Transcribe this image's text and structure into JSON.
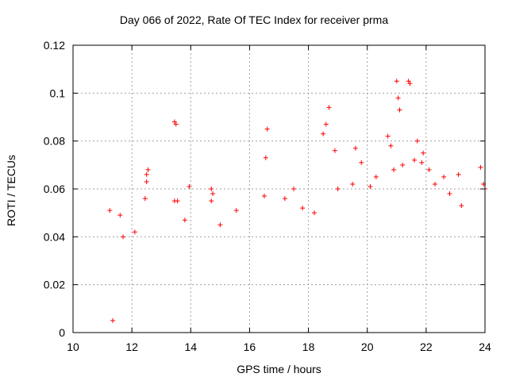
{
  "chart_data": {
    "type": "scatter",
    "title": "Day 066 of 2022, Rate Of TEC Index for receiver prma",
    "xlabel": "GPS time / hours",
    "ylabel": "ROTI / TECUs",
    "xlim": [
      10,
      24
    ],
    "ylim": [
      0,
      0.12
    ],
    "x_ticks": [
      10,
      12,
      14,
      16,
      18,
      20,
      22,
      24
    ],
    "x_tick_labels": [
      "10",
      "12",
      "14",
      "16",
      "18",
      "20",
      "22",
      "24"
    ],
    "y_ticks": [
      0,
      0.02,
      0.04,
      0.06,
      0.08,
      0.1,
      0.12
    ],
    "y_tick_labels": [
      "0",
      "0.02",
      "0.04",
      "0.06",
      "0.08",
      "0.1",
      "0.12"
    ],
    "grid": true,
    "legend": "none",
    "marker": "plus",
    "color": "#ff0000",
    "series": [
      {
        "points": [
          [
            11.25,
            0.051
          ],
          [
            11.35,
            0.005
          ],
          [
            11.6,
            0.049
          ],
          [
            12.5,
            0.066
          ],
          [
            12.55,
            0.068
          ],
          [
            12.45,
            0.056
          ],
          [
            12.5,
            0.063
          ],
          [
            13.45,
            0.088
          ],
          [
            13.5,
            0.087
          ],
          [
            13.45,
            0.055
          ],
          [
            13.55,
            0.055
          ],
          [
            13.95,
            0.061
          ],
          [
            14.7,
            0.06
          ],
          [
            14.75,
            0.058
          ],
          [
            14.7,
            0.055
          ],
          [
            15.55,
            0.051
          ],
          [
            16.5,
            0.057
          ],
          [
            16.55,
            0.073
          ],
          [
            16.6,
            0.085
          ],
          [
            17.2,
            0.056
          ],
          [
            17.5,
            0.06
          ],
          [
            18.5,
            0.083
          ],
          [
            18.6,
            0.087
          ],
          [
            18.7,
            0.094
          ],
          [
            18.9,
            0.076
          ],
          [
            19.6,
            0.077
          ],
          [
            19.8,
            0.071
          ],
          [
            20.7,
            0.082
          ],
          [
            20.8,
            0.078
          ],
          [
            21.0,
            0.105
          ],
          [
            21.05,
            0.098
          ],
          [
            21.1,
            0.093
          ],
          [
            21.4,
            0.105
          ],
          [
            21.45,
            0.104
          ],
          [
            21.7,
            0.08
          ],
          [
            21.9,
            0.075
          ],
          [
            22.1,
            0.068
          ],
          [
            22.3,
            0.062
          ],
          [
            22.6,
            0.065
          ],
          [
            23.1,
            0.066
          ],
          [
            23.2,
            0.053
          ],
          [
            23.85,
            0.069
          ],
          [
            23.95,
            0.062
          ],
          [
            24.0,
            0.06
          ],
          [
            19.0,
            0.06
          ],
          [
            19.5,
            0.062
          ],
          [
            20.3,
            0.065
          ],
          [
            20.9,
            0.068
          ],
          [
            21.2,
            0.07
          ],
          [
            21.6,
            0.072
          ],
          [
            21.85,
            0.071
          ],
          [
            20.1,
            0.061
          ],
          [
            22.8,
            0.058
          ],
          [
            17.8,
            0.052
          ],
          [
            18.2,
            0.05
          ],
          [
            15.0,
            0.045
          ],
          [
            13.8,
            0.047
          ],
          [
            12.1,
            0.042
          ],
          [
            11.7,
            0.04
          ]
        ]
      }
    ]
  }
}
